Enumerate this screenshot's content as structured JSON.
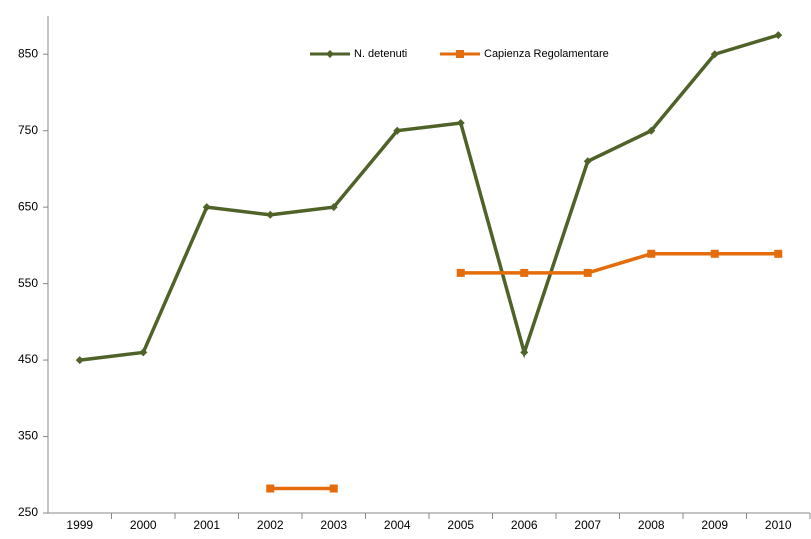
{
  "chart_data": {
    "type": "line",
    "categories": [
      "1999",
      "2000",
      "2001",
      "2002",
      "2003",
      "2004",
      "2005",
      "2006",
      "2007",
      "2008",
      "2009",
      "2010"
    ],
    "series": [
      {
        "name": "N. detenuti",
        "color": "#4f6228",
        "marker": "diamond",
        "values": [
          450,
          460,
          650,
          640,
          650,
          750,
          760,
          460,
          710,
          750,
          850,
          875
        ]
      },
      {
        "name": "Capienza Regolamentare",
        "color": "#e46c0a",
        "marker": "square",
        "values": [
          null,
          null,
          null,
          282,
          282,
          null,
          564,
          564,
          564,
          589,
          589,
          589
        ]
      }
    ],
    "ylim": [
      250,
      900
    ],
    "yticks": [
      250,
      350,
      450,
      550,
      650,
      750,
      850
    ],
    "grid": false,
    "legend": "top"
  }
}
